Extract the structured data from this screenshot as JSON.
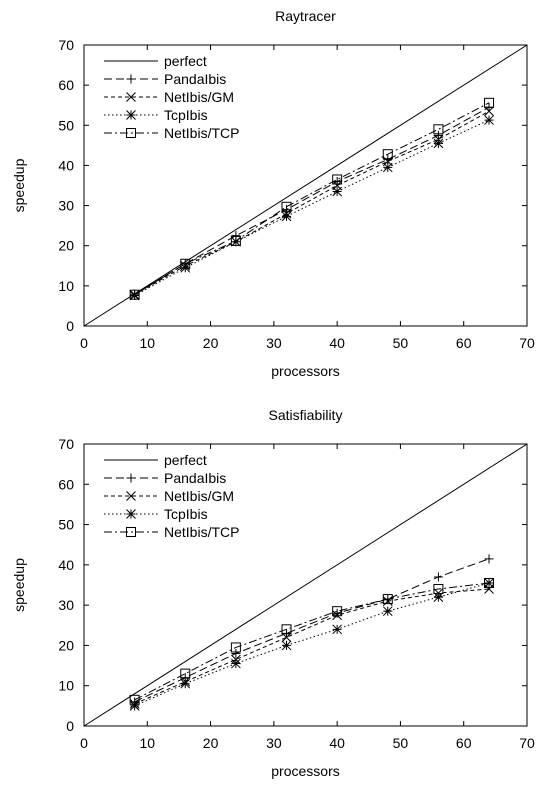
{
  "chart_data": [
    {
      "type": "line",
      "title": "Raytracer",
      "xlabel": "processors",
      "ylabel": "speedup",
      "xlim": [
        0,
        70
      ],
      "ylim": [
        0,
        70
      ],
      "xticks": [
        0,
        10,
        20,
        30,
        40,
        50,
        60,
        70
      ],
      "yticks": [
        0,
        10,
        20,
        30,
        40,
        50,
        60,
        70
      ],
      "grid": false,
      "legend_position": "top-left",
      "series": [
        {
          "name": "perfect",
          "marker": "none",
          "dash": "solid",
          "x": [
            0,
            70
          ],
          "y": [
            0,
            70
          ]
        },
        {
          "name": "PandaIbis",
          "marker": "plus",
          "dash": "dashed",
          "x": [
            8,
            16,
            24,
            32,
            40,
            48,
            56,
            64
          ],
          "y": [
            7.9,
            15.5,
            22.5,
            29.0,
            36.0,
            41.5,
            47.5,
            54.5
          ]
        },
        {
          "name": "NetIbis/GM",
          "marker": "cross",
          "dash": "short-dashed",
          "x": [
            8,
            16,
            24,
            32,
            40,
            48,
            56,
            64
          ],
          "y": [
            7.8,
            15.0,
            21.0,
            28.0,
            35.0,
            41.0,
            46.5,
            53.5
          ]
        },
        {
          "name": "TcpIbis",
          "marker": "star",
          "dash": "dotted",
          "x": [
            8,
            16,
            24,
            32,
            40,
            48,
            56,
            64
          ],
          "y": [
            7.6,
            14.5,
            21.0,
            27.3,
            33.5,
            39.5,
            45.5,
            51.3
          ]
        },
        {
          "name": "NetIbis/TCP",
          "marker": "square",
          "dash": "dash-dot",
          "x": [
            8,
            16,
            24,
            32,
            40,
            48,
            56,
            64
          ],
          "y": [
            7.8,
            15.5,
            21.2,
            29.7,
            36.5,
            42.8,
            49.0,
            55.6
          ]
        }
      ]
    },
    {
      "type": "line",
      "title": "Satisfiability",
      "xlabel": "processors",
      "ylabel": "speedup",
      "xlim": [
        0,
        70
      ],
      "ylim": [
        0,
        70
      ],
      "xticks": [
        0,
        10,
        20,
        30,
        40,
        50,
        60,
        70
      ],
      "yticks": [
        0,
        10,
        20,
        30,
        40,
        50,
        60,
        70
      ],
      "grid": false,
      "legend_position": "top-left",
      "series": [
        {
          "name": "perfect",
          "marker": "none",
          "dash": "solid",
          "x": [
            0,
            70
          ],
          "y": [
            0,
            70
          ]
        },
        {
          "name": "PandaIbis",
          "marker": "plus",
          "dash": "dashed",
          "x": [
            8,
            16,
            24,
            32,
            40,
            48,
            56,
            64
          ],
          "y": [
            6.0,
            12.0,
            18.0,
            23.0,
            28.0,
            31.5,
            37.0,
            41.5
          ]
        },
        {
          "name": "NetIbis/GM",
          "marker": "cross",
          "dash": "short-dashed",
          "x": [
            8,
            16,
            24,
            32,
            40,
            48,
            56,
            64
          ],
          "y": [
            5.5,
            11.0,
            16.5,
            22.0,
            27.5,
            31.0,
            33.0,
            34.0
          ]
        },
        {
          "name": "TcpIbis",
          "marker": "star",
          "dash": "dotted",
          "x": [
            8,
            16,
            24,
            32,
            40,
            48,
            56,
            64
          ],
          "y": [
            5.0,
            10.5,
            15.5,
            20.0,
            24.0,
            28.5,
            32.0,
            35.5
          ]
        },
        {
          "name": "NetIbis/TCP",
          "marker": "square",
          "dash": "dash-dot",
          "x": [
            8,
            16,
            24,
            32,
            40,
            48,
            56,
            64
          ],
          "y": [
            6.5,
            13.0,
            19.5,
            24.0,
            28.5,
            31.5,
            34.0,
            35.5
          ]
        }
      ]
    }
  ]
}
